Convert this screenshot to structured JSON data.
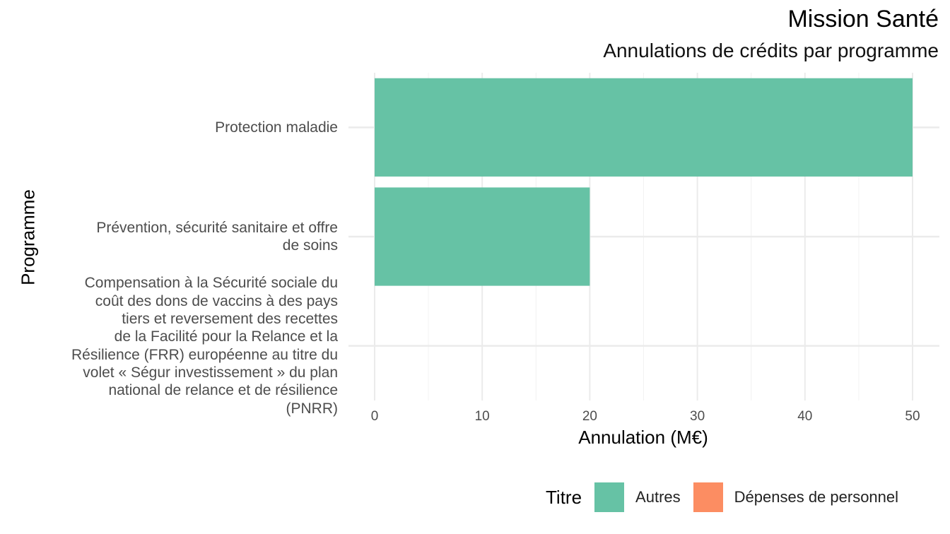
{
  "chart_data": {
    "type": "bar",
    "orientation": "horizontal",
    "title": "Mission Santé",
    "subtitle": "Annulations de crédits par programme",
    "xlabel": "Annulation (M€)",
    "ylabel": "Programme",
    "xlim": [
      0,
      50
    ],
    "xticks": [
      0,
      10,
      20,
      30,
      40,
      50
    ],
    "grid": true,
    "categories": [
      "Protection maladie",
      "Prévention, sécurité sanitaire et offre de soins",
      "Compensation à la Sécurité sociale du coût des dons de vaccins à des pays tiers et reversement des recettes de la Facilité pour la Relance et la Résilience (FRR) européenne au titre du volet « Ségur investissement » du plan national de relance et de résilience (PNRR)"
    ],
    "category_lines": [
      [
        "Protection maladie"
      ],
      [
        "Prévention, sécurité sanitaire et offre",
        "de soins"
      ],
      [
        "Compensation à la Sécurité sociale du",
        "coût des dons de vaccins à des pays",
        "tiers et reversement des recettes",
        "de la Facilité pour la Relance et la",
        "Résilience (FRR) européenne au titre du",
        "volet « Ségur investissement » du plan",
        "national de relance et de résilience",
        "(PNRR)"
      ]
    ],
    "series": [
      {
        "name": "Autres",
        "color": "#66c2a5",
        "values": [
          50,
          20,
          0
        ]
      },
      {
        "name": "Dépenses de personnel",
        "color": "#fc8d62",
        "values": [
          0,
          0,
          0
        ]
      }
    ],
    "legend": {
      "title": "Titre",
      "position": "bottom-right",
      "items": [
        {
          "label": "Autres",
          "color": "#66c2a5"
        },
        {
          "label": "Dépenses de personnel",
          "color": "#fc8d62"
        }
      ]
    }
  }
}
